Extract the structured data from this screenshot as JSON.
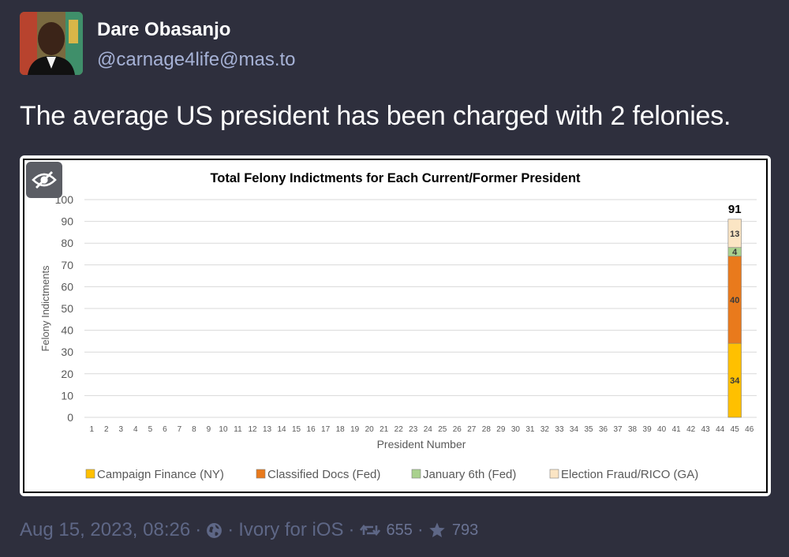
{
  "author": {
    "display_name": "Dare Obasanjo",
    "handle": "@carnage4life@mas.to"
  },
  "post": {
    "text": "The average US president has been charged with 2 felonies."
  },
  "media": {
    "hide_icon": "eye-slash-icon"
  },
  "meta": {
    "date": "Aug 15, 2023, 08:26",
    "visibility_icon": "globe-icon",
    "client": "Ivory for iOS",
    "boost_icon": "retweet-icon",
    "boosts": "655",
    "favourite_icon": "star-icon",
    "favourites": "793",
    "separator": "·"
  },
  "chart_data": {
    "type": "bar",
    "stacked": true,
    "title": "Total Felony Indictments for Each Current/Former President",
    "xlabel": "President Number",
    "ylabel": "Felony Indictments",
    "ylim": [
      0,
      100
    ],
    "yticks": [
      "0",
      "10",
      "20",
      "30",
      "40",
      "50",
      "60",
      "70",
      "80",
      "90",
      "100"
    ],
    "categories": [
      "1",
      "2",
      "3",
      "4",
      "5",
      "6",
      "7",
      "8",
      "9",
      "10",
      "11",
      "12",
      "13",
      "14",
      "15",
      "16",
      "17",
      "18",
      "19",
      "20",
      "21",
      "22",
      "23",
      "24",
      "25",
      "26",
      "27",
      "28",
      "29",
      "30",
      "31",
      "32",
      "33",
      "34",
      "35",
      "36",
      "37",
      "38",
      "39",
      "40",
      "41",
      "42",
      "43",
      "44",
      "45",
      "46"
    ],
    "series": [
      {
        "name": "Campaign Finance (NY)",
        "color": "#ffc000",
        "data_label": "34",
        "values": [
          0,
          0,
          0,
          0,
          0,
          0,
          0,
          0,
          0,
          0,
          0,
          0,
          0,
          0,
          0,
          0,
          0,
          0,
          0,
          0,
          0,
          0,
          0,
          0,
          0,
          0,
          0,
          0,
          0,
          0,
          0,
          0,
          0,
          0,
          0,
          0,
          0,
          0,
          0,
          0,
          0,
          0,
          0,
          0,
          34,
          0
        ]
      },
      {
        "name": "Classified Docs (Fed)",
        "color": "#e97a1c",
        "data_label": "40",
        "values": [
          0,
          0,
          0,
          0,
          0,
          0,
          0,
          0,
          0,
          0,
          0,
          0,
          0,
          0,
          0,
          0,
          0,
          0,
          0,
          0,
          0,
          0,
          0,
          0,
          0,
          0,
          0,
          0,
          0,
          0,
          0,
          0,
          0,
          0,
          0,
          0,
          0,
          0,
          0,
          0,
          0,
          0,
          0,
          0,
          40,
          0
        ]
      },
      {
        "name": "January 6th (Fed)",
        "color": "#a9d18e",
        "data_label": "4",
        "values": [
          0,
          0,
          0,
          0,
          0,
          0,
          0,
          0,
          0,
          0,
          0,
          0,
          0,
          0,
          0,
          0,
          0,
          0,
          0,
          0,
          0,
          0,
          0,
          0,
          0,
          0,
          0,
          0,
          0,
          0,
          0,
          0,
          0,
          0,
          0,
          0,
          0,
          0,
          0,
          0,
          0,
          0,
          0,
          0,
          4,
          0
        ]
      },
      {
        "name": "Election Fraud/RICO (GA)",
        "color": "#fbe5c4",
        "data_label": "13",
        "values": [
          0,
          0,
          0,
          0,
          0,
          0,
          0,
          0,
          0,
          0,
          0,
          0,
          0,
          0,
          0,
          0,
          0,
          0,
          0,
          0,
          0,
          0,
          0,
          0,
          0,
          0,
          0,
          0,
          0,
          0,
          0,
          0,
          0,
          0,
          0,
          0,
          0,
          0,
          0,
          0,
          0,
          0,
          0,
          0,
          13,
          0
        ]
      }
    ],
    "total_label": "91",
    "legend_position": "bottom",
    "grid": true
  }
}
